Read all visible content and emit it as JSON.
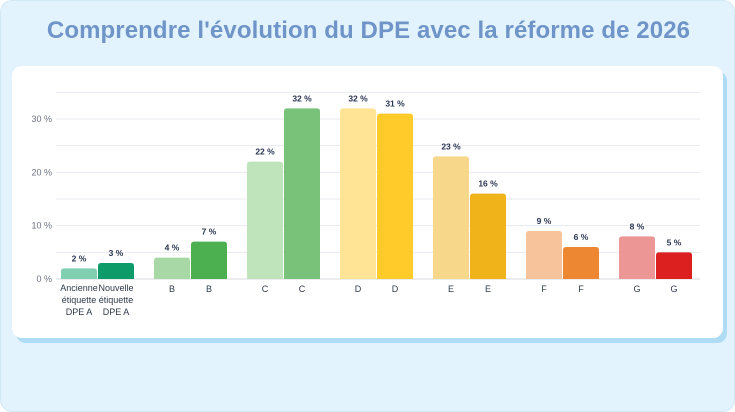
{
  "chart_data": {
    "type": "bar",
    "title": "Comprendre l'évolution du DPE avec la réforme de 2026",
    "ylim": [
      0,
      36
    ],
    "yticks": [
      0,
      10,
      20,
      30
    ],
    "ytick_labels": [
      "0 %",
      "10 %",
      "20 %",
      "30 %"
    ],
    "groups": [
      {
        "labels": [
          "Ancienne étiquette DPE A",
          "Nouvelle étiquette DPE A"
        ],
        "old": {
          "value": 2,
          "label": "2 %",
          "color": "#7fcfb0"
        },
        "new": {
          "value": 3,
          "label": "3 %",
          "color": "#0d9b6a"
        }
      },
      {
        "labels": [
          "B",
          "B"
        ],
        "old": {
          "value": 4,
          "label": "4 %",
          "color": "#a8d8a6"
        },
        "new": {
          "value": 7,
          "label": "7 %",
          "color": "#4caf50"
        }
      },
      {
        "labels": [
          "C",
          "C"
        ],
        "old": {
          "value": 22,
          "label": "22 %",
          "color": "#bfe3bb"
        },
        "new": {
          "value": 32,
          "label": "32 %",
          "color": "#79c27a"
        }
      },
      {
        "labels": [
          "D",
          "D"
        ],
        "old": {
          "value": 32,
          "label": "32 %",
          "color": "#ffe495"
        },
        "new": {
          "value": 31,
          "label": "31 %",
          "color": "#ffcb2a"
        }
      },
      {
        "labels": [
          "E",
          "E"
        ],
        "old": {
          "value": 23,
          "label": "23 %",
          "color": "#f7d88a"
        },
        "new": {
          "value": 16,
          "label": "16 %",
          "color": "#f0b41a"
        }
      },
      {
        "labels": [
          "F",
          "F"
        ],
        "old": {
          "value": 9,
          "label": "9 %",
          "color": "#f6c39a"
        },
        "new": {
          "value": 6,
          "label": "6 %",
          "color": "#ee8732"
        }
      },
      {
        "labels": [
          "G",
          "G"
        ],
        "old": {
          "value": 8,
          "label": "8 %",
          "color": "#ec9696"
        },
        "new": {
          "value": 5,
          "label": "5 %",
          "color": "#dc2020"
        }
      }
    ]
  }
}
